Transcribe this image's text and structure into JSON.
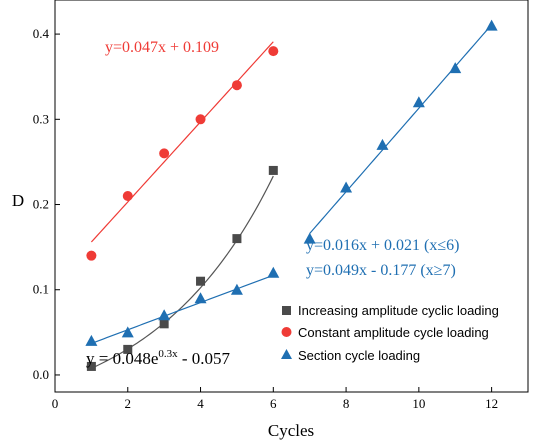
{
  "chart_data": {
    "type": "scatter",
    "title": "",
    "xlabel": "Cycles",
    "ylabel": "D",
    "xlim": [
      0,
      13
    ],
    "ylim": [
      -0.02,
      0.44
    ],
    "x_ticks": [
      0,
      2,
      4,
      6,
      8,
      10,
      12
    ],
    "y_ticks": [
      0.0,
      0.1,
      0.2,
      0.3,
      0.4
    ],
    "x_tick_labels": [
      "0",
      "2",
      "4",
      "6",
      "8",
      "10",
      "12"
    ],
    "y_tick_labels": [
      "0.0",
      "0.1",
      "0.2",
      "0.3",
      "0.4"
    ],
    "grid": false,
    "legend_position": "bottom-right",
    "series": [
      {
        "name": "Increasing amplitude cyclic loading",
        "marker": "square",
        "color": "#4a4a4a",
        "x": [
          1,
          2,
          3,
          4,
          5,
          6
        ],
        "y": [
          0.01,
          0.03,
          0.06,
          0.11,
          0.16,
          0.24
        ],
        "fit": {
          "kind": "exp",
          "a": 0.048,
          "b": 0.3,
          "c": -0.057,
          "x_range": [
            1,
            6
          ],
          "color": "#555555"
        }
      },
      {
        "name": "Constant amplitude cycle loading",
        "marker": "circle",
        "color": "#ef3b36",
        "x": [
          1,
          2,
          3,
          4,
          5,
          6
        ],
        "y": [
          0.14,
          0.21,
          0.26,
          0.3,
          0.34,
          0.38
        ],
        "fit": {
          "kind": "linear",
          "slope": 0.047,
          "intercept": 0.109,
          "x_range": [
            1,
            6
          ],
          "color": "#ef3b36"
        }
      },
      {
        "name": "Section cycle loading",
        "marker": "triangle",
        "color": "#1f6fb2",
        "x": [
          1,
          2,
          3,
          4,
          5,
          6,
          7,
          8,
          9,
          10,
          11,
          12
        ],
        "y": [
          0.04,
          0.05,
          0.07,
          0.09,
          0.1,
          0.12,
          0.16,
          0.22,
          0.27,
          0.32,
          0.36,
          0.41
        ],
        "fits": [
          {
            "kind": "linear",
            "slope": 0.016,
            "intercept": 0.021,
            "x_range": [
              1,
              6
            ],
            "color": "#1f6fb2"
          },
          {
            "kind": "linear",
            "slope": 0.049,
            "intercept": -0.177,
            "x_range": [
              7,
              12
            ],
            "color": "#1f6fb2"
          }
        ]
      }
    ],
    "annotations": {
      "red_equation": "y=0.047x + 0.109",
      "blue_equation_1": "y=0.016x + 0.021 (x≤6)",
      "blue_equation_2": "y=0.049x - 0.177 (x≥7)",
      "black_equation_prefix": "y = 0.048e",
      "black_equation_exponent": "0.3x",
      "black_equation_suffix": " - 0.057"
    }
  }
}
